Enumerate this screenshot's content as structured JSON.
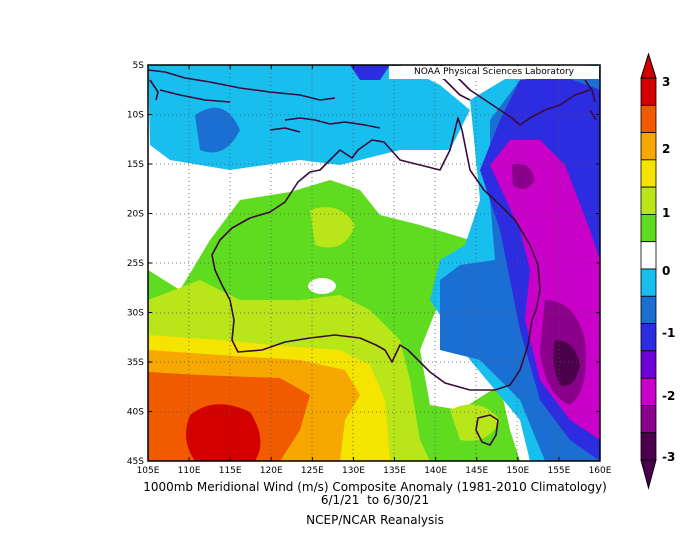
{
  "credit": "NOAA Physical Sciences Laboratory",
  "captions": {
    "line1": "1000mb Meridional Wind (m/s) Composite Anomaly (1981-2010 Climatology)",
    "line2": "6/1/21  to 6/30/21",
    "line3": "NCEP/NCAR Reanalysis"
  },
  "axes": {
    "lon_ticks": [
      "105E",
      "110E",
      "115E",
      "120E",
      "125E",
      "130E",
      "135E",
      "140E",
      "145E",
      "150E",
      "155E",
      "160E"
    ],
    "lat_ticks": [
      "5S",
      "10S",
      "15S",
      "20S",
      "25S",
      "30S",
      "35S",
      "40S",
      "45S"
    ]
  },
  "colorbar": {
    "labels": [
      "3",
      "2",
      "1",
      "0",
      "-1",
      "-2",
      "-3"
    ],
    "colors": [
      "#d40000",
      "#f25a00",
      "#f7a800",
      "#f5e400",
      "#b9e619",
      "#5fdb20",
      "#ffffff",
      "#18bfee",
      "#1c6fd2",
      "#2c2ce0",
      "#6f00d8",
      "#c800c8",
      "#8a008a",
      "#4b004b"
    ]
  },
  "map": {
    "lon_range": [
      105,
      160
    ],
    "lat_range": [
      -5,
      -45
    ],
    "grid": true
  }
}
